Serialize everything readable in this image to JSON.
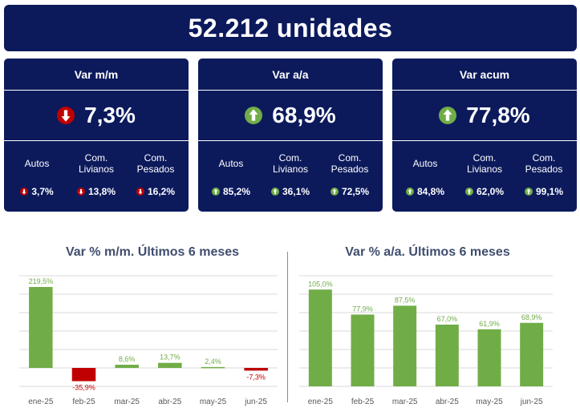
{
  "header": {
    "total": "52.212 unidades"
  },
  "subLabels": {
    "autos": "Autos",
    "livianos": [
      "Com.",
      "Livianos"
    ],
    "pesados": [
      "Com.",
      "Pesados"
    ]
  },
  "cards": [
    {
      "title": "Var m/m",
      "value": "7,3%",
      "direction": "down",
      "subs": [
        {
          "value": "3,7%",
          "direction": "down"
        },
        {
          "value": "13,8%",
          "direction": "down"
        },
        {
          "value": "16,2%",
          "direction": "down"
        }
      ]
    },
    {
      "title": "Var a/a",
      "value": "68,9%",
      "direction": "up",
      "subs": [
        {
          "value": "85,2%",
          "direction": "up"
        },
        {
          "value": "36,1%",
          "direction": "up"
        },
        {
          "value": "72,5%",
          "direction": "up"
        }
      ]
    },
    {
      "title": "Var acum",
      "value": "77,8%",
      "direction": "up",
      "subs": [
        {
          "value": "84,8%",
          "direction": "up"
        },
        {
          "value": "62,0%",
          "direction": "up"
        },
        {
          "value": "99,1%",
          "direction": "up"
        }
      ]
    }
  ],
  "colors": {
    "navy": "#0c1a5c",
    "up": "#70ad47",
    "down": "#c00000"
  },
  "chart_data": [
    {
      "type": "bar",
      "title": "Var % m/m. Últimos 6 meses",
      "categories": [
        "ene-25",
        "feb-25",
        "mar-25",
        "abr-25",
        "may-25",
        "jun-25"
      ],
      "values": [
        219.5,
        -35.9,
        8.6,
        13.7,
        2.4,
        -7.3
      ],
      "labels": [
        "219,5%",
        "-35,9%",
        "8,6%",
        "13,7%",
        "2,4%",
        "-7,3%"
      ],
      "ylim": [
        -50,
        250
      ],
      "grid": true
    },
    {
      "type": "bar",
      "title": "Var % a/a. Últimos 6 meses",
      "categories": [
        "ene-25",
        "feb-25",
        "mar-25",
        "abr-25",
        "may-25",
        "jun-25"
      ],
      "values": [
        105.0,
        77.9,
        87.5,
        67.0,
        61.9,
        68.9
      ],
      "labels": [
        "105,0%",
        "77,9%",
        "87,5%",
        "67,0%",
        "61,9%",
        "68,9%"
      ],
      "ylim": [
        0,
        120
      ],
      "grid": true
    }
  ]
}
